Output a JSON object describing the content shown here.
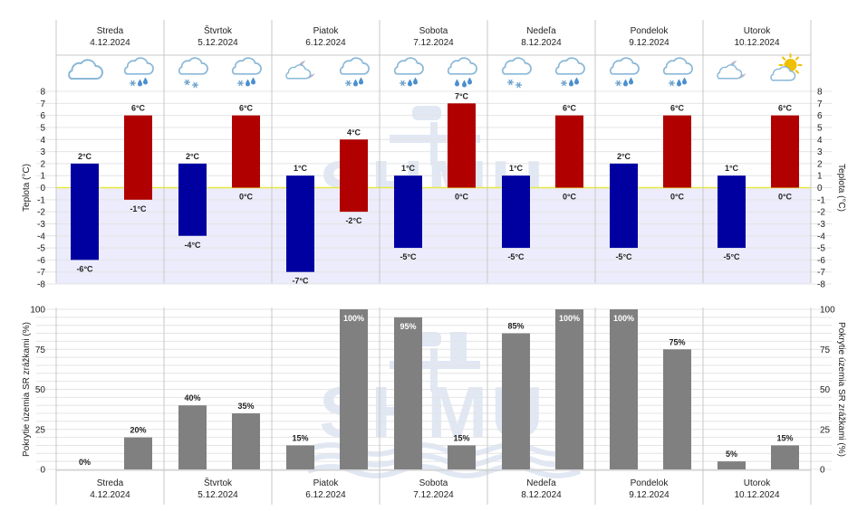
{
  "days": [
    {
      "name": "Streda",
      "date": "4.12.2024",
      "icons": [
        "cloud-icon",
        "snow-rain-cloud-icon"
      ]
    },
    {
      "name": "Štvrtok",
      "date": "5.12.2024",
      "icons": [
        "snow-cloud-icon",
        "snow-rain-cloud-icon"
      ]
    },
    {
      "name": "Piatok",
      "date": "6.12.2024",
      "icons": [
        "cloud-moon-icon",
        "snow-rain-cloud-icon"
      ]
    },
    {
      "name": "Sobota",
      "date": "7.12.2024",
      "icons": [
        "snow-rain-cloud-icon",
        "rain-cloud-icon"
      ]
    },
    {
      "name": "Nedeľa",
      "date": "8.12.2024",
      "icons": [
        "snow-cloud-icon",
        "snow-rain-cloud-icon"
      ]
    },
    {
      "name": "Pondelok",
      "date": "9.12.2024",
      "icons": [
        "snow-rain-cloud-icon",
        "snow-rain-cloud-icon"
      ]
    },
    {
      "name": "Utorok",
      "date": "10.12.2024",
      "icons": [
        "cloud-moon-icon",
        "sun-cloud-icon"
      ]
    }
  ],
  "chart_data": [
    {
      "type": "bar",
      "name": "temperature",
      "ylabel": "Teplota (°C)",
      "ylabel_right": "Teplota (°C)",
      "ylim": [
        -8,
        8
      ],
      "yticks": [
        "8",
        "7",
        "6",
        "5",
        "4",
        "3",
        "2",
        "1",
        "0",
        "-1",
        "-2",
        "-3",
        "-4",
        "-5",
        "-6",
        "-7",
        "-8"
      ],
      "unit": "°C",
      "series": [
        {
          "name": "night",
          "color": "#0000a0",
          "max": [
            2,
            2,
            1,
            1,
            1,
            2,
            1
          ],
          "min": [
            -6,
            -4,
            -7,
            -5,
            -5,
            -5,
            -5
          ],
          "max_labels": [
            "2°C",
            "2°C",
            "1°C",
            "1°C",
            "1°C",
            "2°C",
            "1°C"
          ],
          "min_labels": [
            "-6°C",
            "-4°C",
            "-7°C",
            "-5°C",
            "-5°C",
            "-5°C",
            "-5°C"
          ]
        },
        {
          "name": "day",
          "color": "#b00000",
          "max": [
            6,
            6,
            4,
            7,
            6,
            6,
            6
          ],
          "min": [
            -1,
            0,
            -2,
            0,
            0,
            0,
            0
          ],
          "max_labels": [
            "6°C",
            "6°C",
            "4°C",
            "7°C",
            "6°C",
            "6°C",
            "6°C"
          ],
          "min_labels": [
            "-1°C",
            "0°C",
            "-2°C",
            "0°C",
            "0°C",
            "0°C",
            "0°C"
          ]
        }
      ]
    },
    {
      "type": "bar",
      "name": "precipitation_coverage",
      "ylabel": "Pokrytie územia SR zrážkami (%)",
      "ylabel_right": "Pokrytie územia SR zrážkami (%)",
      "ylim": [
        0,
        100
      ],
      "yticks": [
        "100",
        "75",
        "50",
        "25",
        "0"
      ],
      "unit": "%",
      "color": "#808080",
      "series": [
        {
          "name": "first-half",
          "values": [
            0,
            40,
            15,
            95,
            85,
            100,
            5
          ],
          "labels": [
            "0%",
            "40%",
            "15%",
            "95%",
            "85%",
            "100%",
            "5%"
          ]
        },
        {
          "name": "second-half",
          "values": [
            20,
            35,
            100,
            15,
            100,
            75,
            15
          ],
          "labels": [
            "20%",
            "35%",
            "100%",
            "15%",
            "100%",
            "75%",
            "15%"
          ]
        }
      ]
    }
  ],
  "colors": {
    "night_bar": "#0000a0",
    "day_bar": "#b00000",
    "precip_bar": "#808080",
    "below_zero_fill": "#ececfc",
    "zero_line": "#e8e840",
    "grid": "#e4e4e4",
    "divider": "#c8c8c8",
    "icon_cloud": "#8ab8d8",
    "icon_sun": "#f0c000",
    "watermark": "#c9d6ec"
  },
  "watermark": "SHMU"
}
